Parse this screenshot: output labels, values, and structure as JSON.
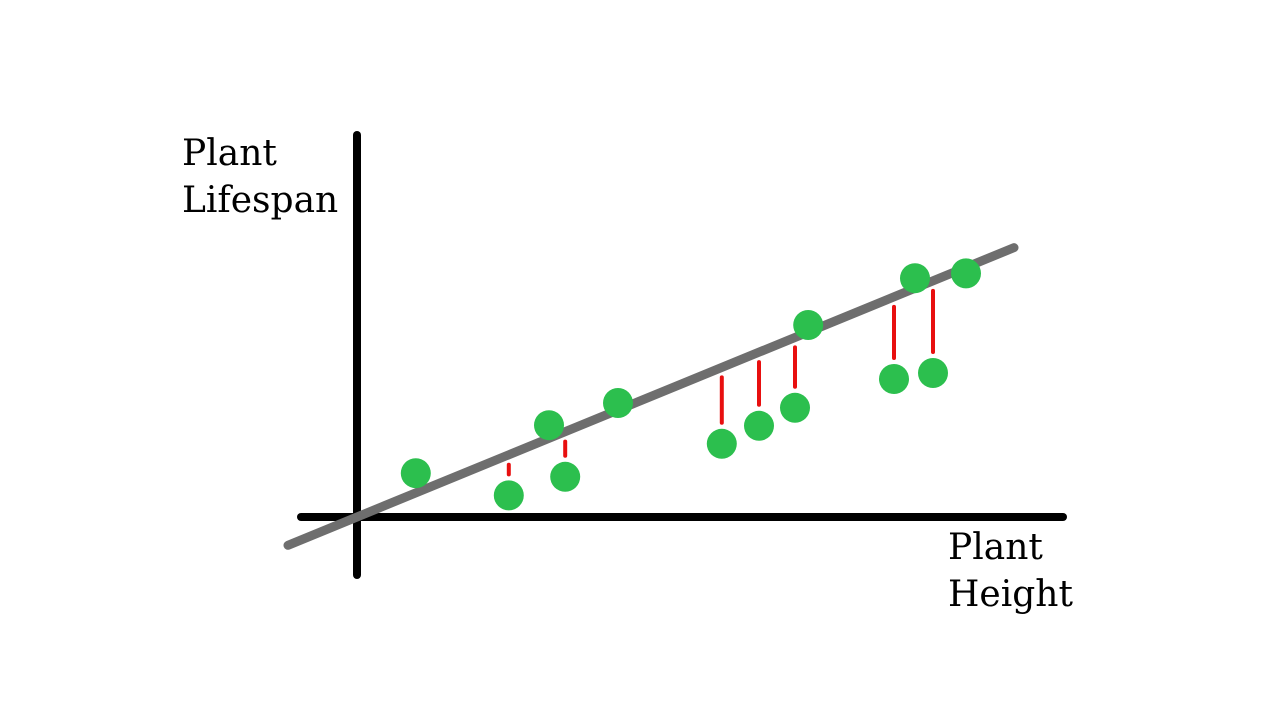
{
  "chart_data": {
    "type": "scatter",
    "title": "",
    "ylabel_lines": [
      "Plant",
      "Lifespan"
    ],
    "xlabel_lines": [
      "Plant",
      "Height"
    ],
    "points": [
      {
        "x": 0.98,
        "y": 0.73
      },
      {
        "x": 2.53,
        "y": 0.36
      },
      {
        "x": 3.2,
        "y": 1.53
      },
      {
        "x": 3.47,
        "y": 0.67
      },
      {
        "x": 4.35,
        "y": 1.9
      },
      {
        "x": 6.08,
        "y": 1.22
      },
      {
        "x": 6.7,
        "y": 1.52
      },
      {
        "x": 7.3,
        "y": 1.82
      },
      {
        "x": 7.52,
        "y": 3.2
      },
      {
        "x": 8.95,
        "y": 2.3
      },
      {
        "x": 9.3,
        "y": 3.98
      },
      {
        "x": 9.6,
        "y": 2.4
      },
      {
        "x": 10.15,
        "y": 4.06
      }
    ],
    "regression_line": {
      "slope": 0.41,
      "intercept": 0,
      "x_range": [
        -1.15,
        10.95
      ]
    },
    "show_residuals": true,
    "colors": {
      "points": "#2cbf4e",
      "line": "#6e6e6e",
      "residuals": "#e80f0f",
      "axes": "#000000"
    }
  }
}
